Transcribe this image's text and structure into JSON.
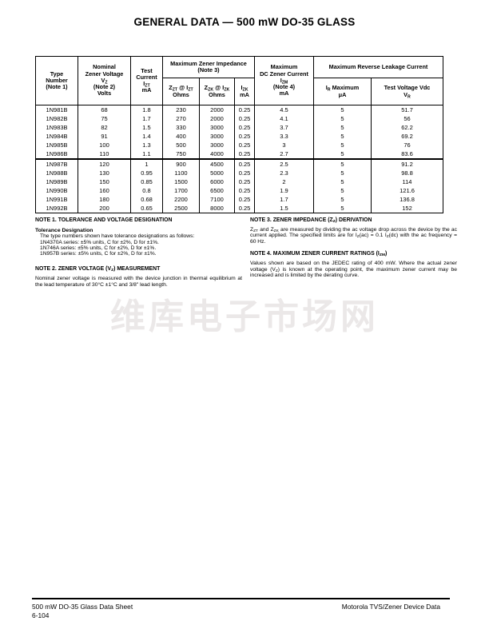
{
  "page": {
    "title": "GENERAL DATA — 500 mW DO-35 GLASS",
    "watermark": "维库电子市场网"
  },
  "table": {
    "head": {
      "type": [
        "Type",
        "Number",
        "(Note 1)"
      ],
      "nominal_vz": [
        "Nominal",
        "Zener Voltage",
        [
          {
            "t": "V"
          },
          {
            "t": "Z",
            "s": true
          }
        ],
        "(Note 2)",
        "Volts"
      ],
      "test_current": [
        "Test",
        "Current",
        [
          {
            "t": "I"
          },
          {
            "t": "ZT",
            "s": true
          }
        ],
        "mA"
      ],
      "impedance_group": [
        "Maximum Zener Impedance",
        "(Note 3)"
      ],
      "zzt": [
        [
          {
            "t": "Z"
          },
          {
            "t": "ZT",
            "s": true
          },
          {
            "t": " @ I"
          },
          {
            "t": "ZT",
            "s": true
          }
        ],
        "Ohms"
      ],
      "zzk": [
        [
          {
            "t": "Z"
          },
          {
            "t": "ZK",
            "s": true
          },
          {
            "t": " @ I"
          },
          {
            "t": "ZK",
            "s": true
          }
        ],
        "Ohms"
      ],
      "izk": [
        [
          {
            "t": "I"
          },
          {
            "t": "ZK",
            "s": true
          }
        ],
        "mA"
      ],
      "izm": [
        "Maximum",
        "DC Zener Current",
        [
          {
            "t": "I"
          },
          {
            "t": "ZM",
            "s": true
          }
        ],
        "(Note 4)",
        "mA"
      ],
      "leakage_group": [
        "Maximum Reverse Leakage Current"
      ],
      "ir": [
        [
          {
            "t": "I"
          },
          {
            "t": "R",
            "s": true
          },
          {
            "t": " Maximum"
          }
        ],
        "μA"
      ],
      "vr": [
        "Test Voltage Vdc",
        [
          {
            "t": "V"
          },
          {
            "t": "R",
            "s": true
          }
        ]
      ]
    },
    "groups": [
      [
        [
          "1N981B",
          "68",
          "1.8",
          "230",
          "2000",
          "0.25",
          "4.5",
          "5",
          "51.7"
        ],
        [
          "1N982B",
          "75",
          "1.7",
          "270",
          "2000",
          "0.25",
          "4.1",
          "5",
          "56"
        ],
        [
          "1N983B",
          "82",
          "1.5",
          "330",
          "3000",
          "0.25",
          "3.7",
          "5",
          "62.2"
        ],
        [
          "1N984B",
          "91",
          "1.4",
          "400",
          "3000",
          "0.25",
          "3.3",
          "5",
          "69.2"
        ],
        [
          "1N985B",
          "100",
          "1.3",
          "500",
          "3000",
          "0.25",
          "3",
          "5",
          "76"
        ],
        [
          "1N986B",
          "110",
          "1.1",
          "750",
          "4000",
          "0.25",
          "2.7",
          "5",
          "83.6"
        ]
      ],
      [
        [
          "1N987B",
          "120",
          "1",
          "900",
          "4500",
          "0.25",
          "2.5",
          "5",
          "91.2"
        ],
        [
          "1N988B",
          "130",
          "0.95",
          "1100",
          "5000",
          "0.25",
          "2.3",
          "5",
          "98.8"
        ],
        [
          "1N989B",
          "150",
          "0.85",
          "1500",
          "6000",
          "0.25",
          "2",
          "5",
          "114"
        ],
        [
          "1N990B",
          "160",
          "0.8",
          "1700",
          "6500",
          "0.25",
          "1.9",
          "5",
          "121.6"
        ],
        [
          "1N991B",
          "180",
          "0.68",
          "2200",
          "7100",
          "0.25",
          "1.7",
          "5",
          "136.8"
        ],
        [
          "1N992B",
          "200",
          "0.65",
          "2500",
          "8000",
          "0.25",
          "1.5",
          "5",
          "152"
        ]
      ]
    ]
  },
  "notes": {
    "note1": {
      "heading": "NOTE 1. TOLERANCE AND VOLTAGE DESIGNATION",
      "subheading": "Tolerance Designation",
      "lines": [
        "The type numbers shown have tolerance designations as follows:",
        "1N4370A series: ±5% units, C for ±2%, D for ±1%.",
        "1N746A series: ±5% units, C for ±2%, D for ±1%.",
        "1N957B series: ±5% units, C for ±2%, D for ±1%."
      ]
    },
    "note2": {
      "heading": [
        {
          "t": "NOTE 2. ZENER VOLTAGE (V"
        },
        {
          "t": "Z",
          "s": true
        },
        {
          "t": ") MEASUREMENT"
        }
      ],
      "body": "Nominal zener voltage is measured with the device junction in thermal equilibrium at the lead temperature of 30°C ±1°C and 3/8\" lead length."
    },
    "note3": {
      "heading": [
        {
          "t": "NOTE 3. ZENER IMPEDANCE (Z"
        },
        {
          "t": "Z",
          "s": true
        },
        {
          "t": ") DERIVATION"
        }
      ],
      "body": [
        {
          "t": "Z"
        },
        {
          "t": "ZT",
          "s": true
        },
        {
          "t": " and Z"
        },
        {
          "t": "ZK",
          "s": true
        },
        {
          "t": " are measured by dividing the ac voltage drop across the device by the ac current applied. The specified limits are for I"
        },
        {
          "t": "Z",
          "s": true
        },
        {
          "t": "(ac) = 0.1 I"
        },
        {
          "t": "Z",
          "s": true
        },
        {
          "t": "(dc) with the ac frequency = 60 Hz."
        }
      ]
    },
    "note4": {
      "heading": [
        {
          "t": "NOTE 4. MAXIMUM ZENER CURRENT RATINGS (I"
        },
        {
          "t": "ZM",
          "s": true
        },
        {
          "t": ")"
        }
      ],
      "body": [
        {
          "t": "Values shown are based on the JEDEC rating of 400 mW. Where the actual zener voltage (V"
        },
        {
          "t": "Z",
          "s": true
        },
        {
          "t": ") is known at the operating point, the maximum zener current may be increased and is limited by the derating curve."
        }
      ]
    }
  },
  "footer": {
    "left_line1": "500 mW DO-35 Glass Data Sheet",
    "left_line2": "6-104",
    "right": "Motorola TVS/Zener Device Data"
  }
}
